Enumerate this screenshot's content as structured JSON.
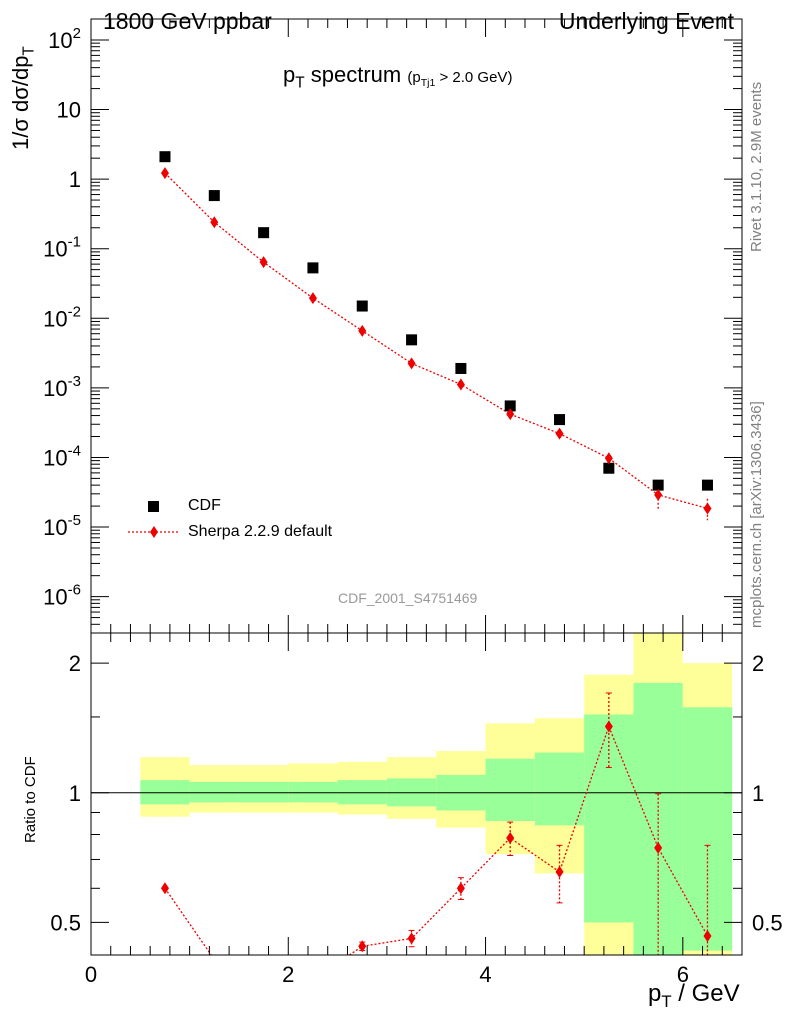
{
  "header": {
    "left": "1800 GeV ppbar",
    "right": "Underlying Event"
  },
  "side": {
    "rivet": "Rivet 3.1.10,  2.9M events",
    "mcplots": "mcplots.cern.ch [arXiv:1306.3436]"
  },
  "main_title": "p",
  "main_title_sub": "T",
  "main_title_rest": " spectrum",
  "main_title_cut_a": "(p",
  "main_title_cut_sub": "Tj1",
  "main_title_cut_b": " > 2.0 GeV)",
  "ylabel_top": "1/σ dσ/dp",
  "ylabel_top_sub": "T",
  "ylabel_bottom": "Ratio to CDF",
  "xlabel_a": "p",
  "xlabel_sub": "T",
  "xlabel_b": " / GeV",
  "analysis_id": "CDF_2001_S4751469",
  "legend": {
    "data_label": "CDF",
    "mc_label": "Sherpa 2.2.9 default"
  },
  "colors": {
    "data": "#000000",
    "mc": "#ee0000",
    "band_inner": "#99ff99",
    "band_outer": "#ffff99",
    "side_text": "#808080"
  },
  "chart_data": [
    {
      "type": "scatter",
      "panel": "main",
      "yscale": "log",
      "xlim": [
        0,
        6.6
      ],
      "ylim": [
        3e-07,
        200
      ],
      "y_tick_labels": [
        "10^2",
        "10",
        "1",
        "10^-1",
        "10^-2",
        "10^-3",
        "10^-4",
        "10^-5",
        "10^-6"
      ],
      "series": [
        {
          "name": "CDF",
          "marker": "square",
          "x": [
            0.75,
            1.25,
            1.75,
            2.25,
            2.75,
            3.25,
            3.75,
            4.25,
            4.75,
            5.25,
            5.75,
            6.25
          ],
          "y": [
            2.1,
            0.58,
            0.17,
            0.053,
            0.015,
            0.0049,
            0.0019,
            0.00055,
            0.00035,
            7e-05,
            4e-05,
            4e-05
          ]
        },
        {
          "name": "Sherpa 2.2.9 default",
          "marker": "diamond",
          "line": "dotted",
          "x": [
            0.75,
            1.25,
            1.75,
            2.25,
            2.75,
            3.25,
            3.75,
            4.25,
            4.75,
            5.25,
            5.75,
            6.25
          ],
          "y": [
            1.22,
            0.24,
            0.064,
            0.0195,
            0.0066,
            0.00225,
            0.00112,
            0.00042,
            0.00022,
            9.75e-05,
            2.9e-05,
            1.85e-05
          ],
          "yerr_low": [
            0.0,
            0.0,
            0.0,
            0.0,
            0.0,
            0.0,
            0.0,
            0.0,
            0.0,
            1e-05,
            1.1e-05,
            6e-06
          ],
          "yerr_high": [
            0.0,
            0.0,
            0.0,
            0.0,
            0.0,
            0.0,
            0.0,
            0.0,
            0.0,
            1e-05,
            9e-06,
            7e-06
          ]
        }
      ]
    },
    {
      "type": "line",
      "panel": "ratio",
      "yscale": "log",
      "xlim": [
        0,
        6.6
      ],
      "ylim": [
        0.42,
        2.35
      ],
      "x_ticks": [
        0,
        2,
        4,
        6
      ],
      "y_ticks": [
        0.5,
        1,
        2
      ],
      "reference": 1,
      "bands": {
        "edges": [
          0.5,
          1.0,
          1.5,
          2.0,
          2.5,
          3.0,
          3.5,
          4.0,
          4.5,
          5.0,
          5.5,
          6.0,
          6.5
        ],
        "inner_low": [
          0.94,
          0.95,
          0.95,
          0.95,
          0.94,
          0.93,
          0.91,
          0.86,
          0.84,
          0.5,
          0.2,
          0.43
        ],
        "inner_high": [
          1.07,
          1.06,
          1.06,
          1.06,
          1.07,
          1.08,
          1.1,
          1.2,
          1.24,
          1.52,
          1.8,
          1.58
        ],
        "outer_low": [
          0.88,
          0.9,
          0.9,
          0.9,
          0.89,
          0.87,
          0.83,
          0.72,
          0.65,
          0.3,
          0.2,
          0.2
        ],
        "outer_high": [
          1.21,
          1.16,
          1.16,
          1.17,
          1.18,
          1.21,
          1.25,
          1.45,
          1.49,
          1.88,
          3.0,
          2.0
        ]
      },
      "series": [
        {
          "name": "Sherpa 2.2.9 default",
          "x": [
            0.75,
            1.25,
            1.75,
            2.25,
            2.75,
            3.25,
            3.75,
            4.25,
            4.75,
            5.25,
            5.75,
            6.25
          ],
          "y": [
            0.6,
            0.41,
            0.376,
            0.368,
            0.44,
            0.459,
            0.6,
            0.785,
            0.655,
            1.425,
            0.745,
            0.465
          ],
          "yerr_low": [
            0,
            0,
            0,
            0,
            0.01,
            0.02,
            0.035,
            0.07,
            0.1,
            0.28,
            0.35,
            0.1
          ],
          "yerr_high": [
            0,
            0,
            0,
            0,
            0.01,
            0.02,
            0.035,
            0.07,
            0.1,
            0.28,
            0.25,
            0.29
          ]
        }
      ]
    }
  ]
}
